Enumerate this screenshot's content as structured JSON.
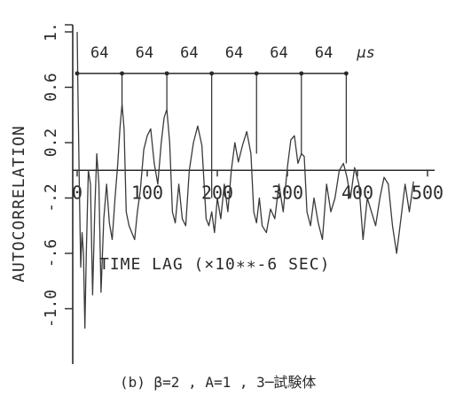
{
  "chart_data": {
    "type": "line",
    "title": "",
    "xlabel": "TIME LAG (×10∗∗-6 SEC)",
    "ylabel": "AUTOCORRELATION",
    "xlim": [
      0,
      500
    ],
    "ylim": [
      -1.4,
      1.0
    ],
    "x_ticks": [
      0,
      100,
      200,
      300,
      400,
      500
    ],
    "x_tick_labels": [
      "0",
      "100",
      "200",
      "300",
      "400",
      "500"
    ],
    "y_ticks": [
      1.0,
      0.6,
      0.2,
      -0.2,
      -0.6,
      -1.0
    ],
    "y_tick_labels": [
      "1.",
      "0.6",
      "0.2",
      "-.2",
      "-.6",
      "-1.0"
    ],
    "grid": false,
    "annotation": {
      "unit": "μs",
      "intervals": [
        "64",
        "64",
        "64",
        "64",
        "64",
        "64"
      ],
      "bracket_y": 0.7,
      "peak_lags": [
        0,
        64,
        128,
        192,
        256,
        320,
        384
      ]
    },
    "caption": "(b) β=2 , A=1 , 3─試験体",
    "series": [
      {
        "x": [
          0,
          1,
          3,
          5,
          7,
          9,
          11,
          13,
          16,
          19,
          22,
          25,
          28,
          31,
          34,
          38,
          42,
          46,
          50,
          54,
          58,
          61,
          64,
          67,
          70,
          74,
          78,
          82,
          86,
          90,
          95,
          100,
          105,
          110,
          115,
          120,
          124,
          128,
          132,
          136,
          140,
          145,
          150,
          155,
          160,
          166,
          172,
          178,
          184,
          188,
          192,
          196,
          200,
          205,
          210,
          215,
          220,
          225,
          230,
          236,
          242,
          248,
          252,
          256,
          260,
          264,
          270,
          276,
          282,
          288,
          294,
          300,
          305,
          310,
          315,
          320,
          324,
          328,
          333,
          338,
          344,
          350,
          356,
          362,
          368,
          374,
          380,
          385,
          390,
          396,
          402,
          408,
          414,
          420,
          426,
          432,
          438,
          444,
          450,
          456,
          462,
          468,
          474,
          480
        ],
        "y": [
          1.0,
          0.6,
          -0.1,
          -0.7,
          -0.45,
          -0.6,
          -1.14,
          -0.6,
          0.0,
          -0.1,
          -0.9,
          -0.3,
          0.12,
          -0.1,
          -0.88,
          -0.35,
          -0.1,
          -0.38,
          -0.5,
          -0.2,
          0.05,
          0.3,
          0.48,
          0.3,
          -0.3,
          -0.4,
          -0.45,
          -0.5,
          -0.3,
          -0.15,
          0.15,
          0.25,
          0.3,
          0.05,
          -0.1,
          0.2,
          0.38,
          0.44,
          0.2,
          -0.3,
          -0.38,
          -0.1,
          -0.35,
          -0.4,
          0.0,
          0.2,
          0.32,
          0.18,
          -0.35,
          -0.4,
          -0.3,
          -0.45,
          -0.2,
          -0.35,
          -0.1,
          -0.3,
          0.0,
          0.2,
          0.06,
          0.18,
          0.28,
          0.12,
          -0.3,
          -0.38,
          -0.2,
          -0.4,
          -0.45,
          -0.28,
          -0.35,
          -0.1,
          -0.3,
          0.02,
          0.22,
          0.25,
          0.05,
          0.12,
          0.1,
          -0.3,
          -0.4,
          -0.2,
          -0.38,
          -0.5,
          -0.1,
          -0.3,
          -0.2,
          0.0,
          0.05,
          -0.05,
          -0.2,
          0.02,
          -0.1,
          -0.5,
          -0.2,
          -0.3,
          -0.4,
          -0.2,
          -0.05,
          -0.1,
          -0.4,
          -0.6,
          -0.35,
          -0.1,
          -0.3,
          -0.08
        ]
      }
    ]
  }
}
